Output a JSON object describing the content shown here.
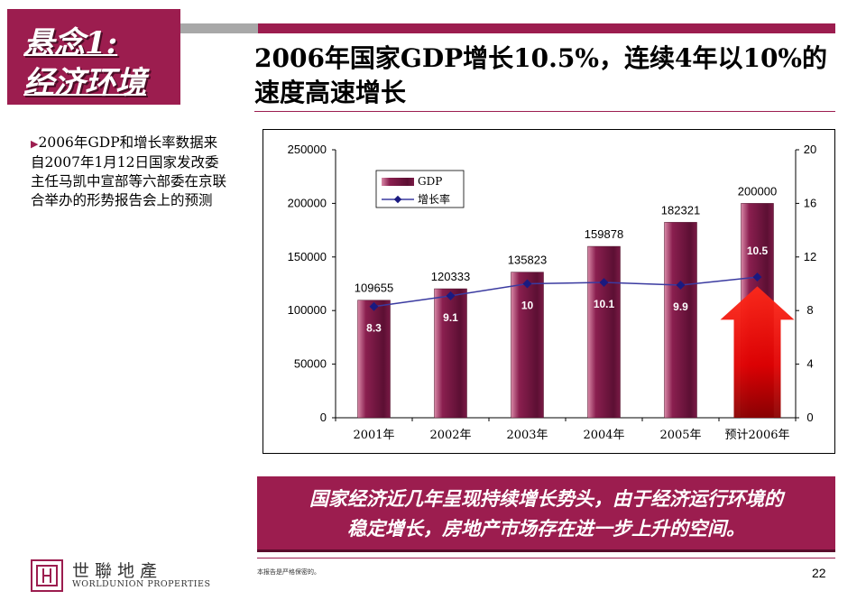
{
  "header": {
    "tag_line1": "悬念1:",
    "tag_line2": "经济环境",
    "title_line1": "2006年国家GDP增长10.5%，连续4年以10%的",
    "title_line2": "速度高速增长"
  },
  "side_note": {
    "marker": "▶",
    "text": "2006年GDP和增长率数据来自2007年1月12日国家发改委主任马凯中宣部等六部委在京联合举办的形势报告会上的预测"
  },
  "chart_data": {
    "type": "bar",
    "categories": [
      "2001年",
      "2002年",
      "2003年",
      "2004年",
      "2005年",
      "预计2006年"
    ],
    "series": [
      {
        "name": "GDP",
        "type": "bar",
        "axis": "left",
        "values": [
          109655,
          120333,
          135823,
          159878,
          182321,
          200000
        ]
      },
      {
        "name": "增长率",
        "type": "line",
        "axis": "right",
        "values": [
          8.3,
          9.1,
          10,
          10.1,
          9.9,
          10.5
        ]
      }
    ],
    "y_left": {
      "min": 0,
      "max": 250000,
      "ticks": [
        "0",
        "50000",
        "100000",
        "150000",
        "200000",
        "250000"
      ]
    },
    "y_right": {
      "min": 0,
      "max": 20,
      "ticks": [
        "0",
        "4",
        "8",
        "12",
        "16",
        "20"
      ]
    },
    "bar_labels": [
      "109655",
      "120333",
      "135823",
      "159878",
      "182321",
      "200000"
    ],
    "rate_labels": [
      "8.3",
      "9.1",
      "10",
      "10.1",
      "9.9",
      "10.5"
    ],
    "legend_position": "top-left",
    "grid": false,
    "colors": {
      "bar": "#8a1f4f",
      "line": "#3a3aa0",
      "arrow": "#e00000"
    }
  },
  "conclusion": {
    "line1": "国家经济近几年呈现持续增长势头，由于经济运行环境的",
    "line2": "稳定增长，房地产市场存在进一步上升的空间。"
  },
  "footer": {
    "logo_cn": "世聯地產",
    "logo_en": "WORLDUNION PROPERTIES",
    "disclaimer": "本报告是严格保密的。",
    "page_number": "22"
  }
}
